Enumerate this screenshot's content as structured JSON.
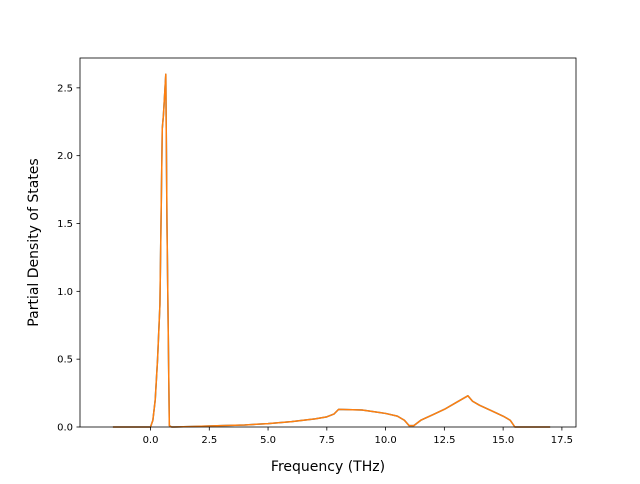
{
  "chart_data": {
    "type": "line",
    "title": "",
    "xlabel": "Frequency (THz)",
    "ylabel": "Partial Density of States",
    "xlim": [
      -3.0,
      18.1
    ],
    "ylim": [
      0.0,
      2.72
    ],
    "x_ticks": [
      0.0,
      2.5,
      5.0,
      7.5,
      10.0,
      12.5,
      15.0,
      17.5
    ],
    "x_tick_labels": [
      "0.0",
      "2.5",
      "5.0",
      "7.5",
      "10.0",
      "12.5",
      "15.0",
      "17.5"
    ],
    "y_ticks": [
      0.0,
      0.5,
      1.0,
      1.5,
      2.0,
      2.5
    ],
    "y_tick_labels": [
      "0.0",
      "0.5",
      "1.0",
      "1.5",
      "2.0",
      "2.5"
    ],
    "grid": false,
    "legend": "none",
    "series": [
      {
        "color": "#1f77b4",
        "x": [
          -1.6,
          0.0,
          0.1,
          0.2,
          0.3,
          0.4,
          0.5,
          0.55,
          0.6,
          0.65,
          0.7,
          0.8,
          0.9,
          1.0,
          2.0,
          3.0,
          4.0,
          5.0,
          6.0,
          7.0,
          7.5,
          7.8,
          8.0,
          9.0,
          10.0,
          10.5,
          10.8,
          11.0,
          11.2,
          11.5,
          12.0,
          12.5,
          13.0,
          13.5,
          13.7,
          14.0,
          14.5,
          15.0,
          15.3,
          15.5,
          16.0,
          17.0
        ],
        "y": [
          0.0,
          0.0,
          0.05,
          0.2,
          0.5,
          0.9,
          2.2,
          2.3,
          2.45,
          2.6,
          1.5,
          0.01,
          0.0,
          0.0,
          0.005,
          0.01,
          0.015,
          0.025,
          0.04,
          0.06,
          0.075,
          0.095,
          0.13,
          0.125,
          0.1,
          0.08,
          0.05,
          0.01,
          0.01,
          0.05,
          0.09,
          0.13,
          0.18,
          0.23,
          0.19,
          0.16,
          0.12,
          0.08,
          0.05,
          0.0,
          0.0,
          0.0
        ]
      },
      {
        "color": "#ff7f0e",
        "x": [
          -1.6,
          0.0,
          0.1,
          0.2,
          0.3,
          0.4,
          0.5,
          0.55,
          0.6,
          0.65,
          0.7,
          0.8,
          0.9,
          1.0,
          2.0,
          3.0,
          4.0,
          5.0,
          6.0,
          7.0,
          7.5,
          7.8,
          8.0,
          9.0,
          10.0,
          10.5,
          10.8,
          11.0,
          11.2,
          11.5,
          12.0,
          12.5,
          13.0,
          13.5,
          13.7,
          14.0,
          14.5,
          15.0,
          15.3,
          15.5,
          16.0,
          17.0
        ],
        "y": [
          0.0,
          0.0,
          0.05,
          0.2,
          0.5,
          0.9,
          2.2,
          2.3,
          2.45,
          2.6,
          1.5,
          0.01,
          0.0,
          0.0,
          0.005,
          0.01,
          0.015,
          0.025,
          0.04,
          0.06,
          0.075,
          0.095,
          0.13,
          0.125,
          0.1,
          0.08,
          0.05,
          0.01,
          0.01,
          0.05,
          0.09,
          0.13,
          0.18,
          0.23,
          0.19,
          0.16,
          0.12,
          0.08,
          0.05,
          0.0,
          0.0,
          0.0
        ]
      }
    ]
  }
}
